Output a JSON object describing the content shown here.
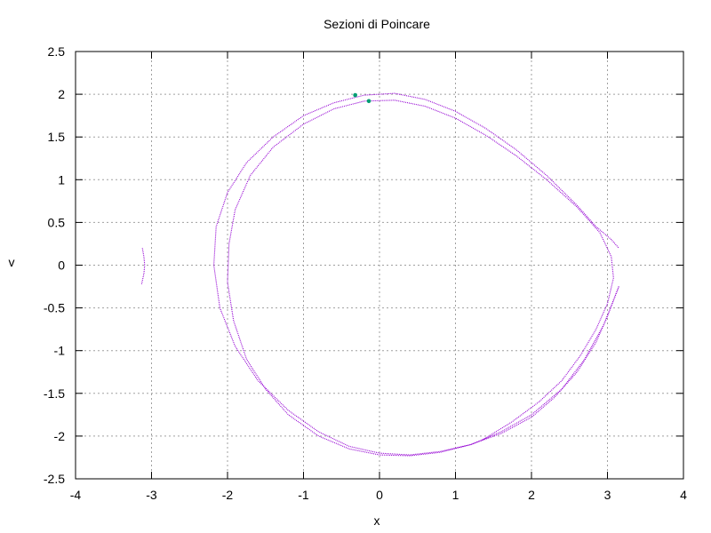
{
  "chart_data": {
    "type": "scatter",
    "title": "Sezioni di Poincare",
    "xlabel": "x",
    "ylabel": "v",
    "xlim": [
      -4,
      4
    ],
    "ylim": [
      -2.5,
      2.5
    ],
    "xticks": [
      -4,
      -3,
      -2,
      -1,
      0,
      1,
      2,
      3,
      4
    ],
    "yticks": [
      -2.5,
      -2,
      -1.5,
      -1,
      -0.5,
      0,
      0.5,
      1,
      1.5,
      2,
      2.5
    ],
    "xtick_labels": [
      "-4",
      "-3",
      "-2",
      "-1",
      "0",
      "1",
      "2",
      "3",
      "4"
    ],
    "ytick_labels": [
      "-2.5",
      "-2",
      "-1.5",
      "-1",
      "-0.5",
      "0",
      "0.5",
      "1",
      "1.5",
      "2",
      "2.5"
    ],
    "grid": true,
    "colors": {
      "series": "#9400d3",
      "highlight": "#009e73",
      "grid": "#a0a0a0"
    },
    "series": [
      {
        "points": [
          [
            3.15,
            -0.25
          ],
          [
            3.0,
            -0.6
          ],
          [
            2.85,
            -0.9
          ],
          [
            2.6,
            -1.25
          ],
          [
            2.3,
            -1.55
          ],
          [
            2.0,
            -1.78
          ],
          [
            1.6,
            -1.97
          ],
          [
            1.2,
            -2.1
          ],
          [
            0.8,
            -2.18
          ],
          [
            0.4,
            -2.22
          ],
          [
            0.0,
            -2.2
          ],
          [
            -0.4,
            -2.12
          ],
          [
            -0.8,
            -1.95
          ],
          [
            -1.2,
            -1.7
          ],
          [
            -1.6,
            -1.35
          ],
          [
            -1.9,
            -0.95
          ],
          [
            -2.1,
            -0.5
          ],
          [
            -2.18,
            0.0
          ],
          [
            -2.15,
            0.45
          ],
          [
            -2.0,
            0.85
          ],
          [
            -1.75,
            1.2
          ],
          [
            -1.4,
            1.5
          ],
          [
            -1.0,
            1.75
          ],
          [
            -0.6,
            1.9
          ],
          [
            -0.2,
            1.99
          ],
          [
            0.2,
            2.01
          ],
          [
            0.6,
            1.94
          ],
          [
            1.0,
            1.8
          ],
          [
            1.4,
            1.6
          ],
          [
            1.8,
            1.35
          ],
          [
            2.2,
            1.05
          ],
          [
            2.6,
            0.7
          ],
          [
            2.85,
            0.45
          ],
          [
            3.05,
            0.3
          ],
          [
            3.15,
            0.2
          ]
        ]
      },
      {
        "points": [
          [
            3.15,
            -0.25
          ],
          [
            2.95,
            -0.7
          ],
          [
            2.7,
            -1.1
          ],
          [
            2.4,
            -1.45
          ],
          [
            2.0,
            -1.75
          ],
          [
            1.6,
            -1.95
          ],
          [
            1.2,
            -2.1
          ],
          [
            0.8,
            -2.19
          ],
          [
            0.4,
            -2.23
          ],
          [
            0.0,
            -2.22
          ],
          [
            -0.4,
            -2.15
          ],
          [
            -0.8,
            -2.0
          ],
          [
            -1.2,
            -1.75
          ],
          [
            -1.5,
            -1.45
          ],
          [
            -1.75,
            -1.1
          ],
          [
            -1.92,
            -0.65
          ],
          [
            -2.0,
            -0.2
          ],
          [
            -1.98,
            0.25
          ],
          [
            -1.9,
            0.65
          ],
          [
            -1.7,
            1.05
          ],
          [
            -1.4,
            1.38
          ],
          [
            -1.0,
            1.65
          ],
          [
            -0.6,
            1.83
          ],
          [
            -0.2,
            1.92
          ],
          [
            0.2,
            1.93
          ],
          [
            0.6,
            1.86
          ],
          [
            1.0,
            1.72
          ],
          [
            1.4,
            1.52
          ],
          [
            1.8,
            1.28
          ],
          [
            2.2,
            1.0
          ],
          [
            2.6,
            0.68
          ],
          [
            2.9,
            0.38
          ],
          [
            3.05,
            0.1
          ],
          [
            3.08,
            -0.15
          ],
          [
            3.0,
            -0.45
          ],
          [
            2.85,
            -0.75
          ],
          [
            2.65,
            -1.05
          ],
          [
            2.4,
            -1.35
          ],
          [
            2.1,
            -1.6
          ],
          [
            1.75,
            -1.83
          ],
          [
            1.35,
            -2.05
          ]
        ]
      },
      {
        "points": [
          [
            -3.12,
            0.2
          ],
          [
            -3.1,
            0.1
          ],
          [
            -3.09,
            0.0
          ],
          [
            -3.1,
            -0.1
          ],
          [
            -3.13,
            -0.22
          ]
        ]
      }
    ],
    "highlight_points": [
      [
        -0.32,
        1.99
      ],
      [
        -0.14,
        1.92
      ]
    ]
  }
}
